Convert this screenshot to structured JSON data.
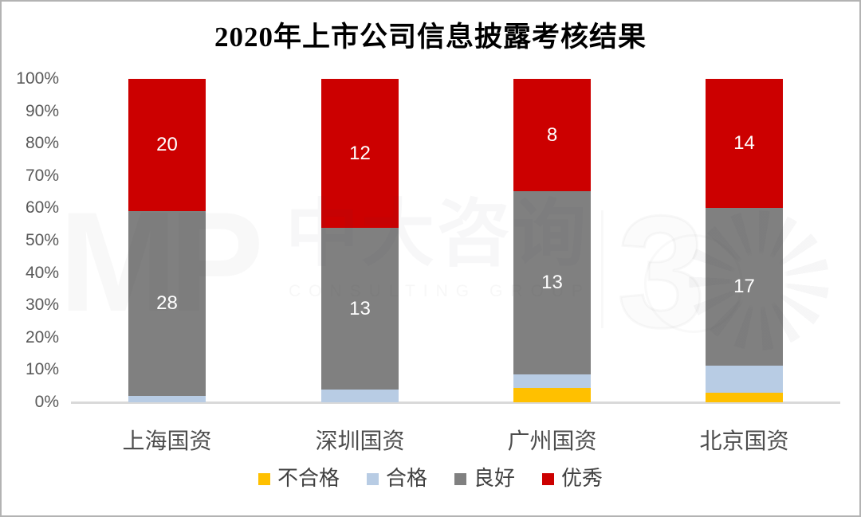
{
  "title": "2020年上市公司信息披露考核结果",
  "colors": {
    "fail": "#FFC000",
    "pass": "#B8CCE4",
    "good": "#808080",
    "excellent": "#CC0000",
    "axis_line": "#D9D9D9",
    "tick_text": "#595959",
    "segment_label_text": "#FFFFFF",
    "frame_border": "#B3B3B3"
  },
  "watermark": {
    "logo": "MP",
    "brand": "中大咨询",
    "brand_sub": "CONSULTING GROUP",
    "mark": "3"
  },
  "chart_data": {
    "type": "bar",
    "variant": "stacked-100-percent",
    "title": "2020年上市公司信息披露考核结果",
    "categories": [
      "上海国资",
      "深圳国资",
      "广州国资",
      "北京国资"
    ],
    "series": [
      {
        "name": "不合格",
        "color": "#FFC000",
        "values": [
          0,
          0,
          1,
          1
        ],
        "show_labels": false
      },
      {
        "name": "合格",
        "color": "#B8CCE4",
        "values": [
          1,
          1,
          1,
          3
        ],
        "show_labels": false
      },
      {
        "name": "良好",
        "color": "#808080",
        "values": [
          28,
          13,
          13,
          17
        ],
        "show_labels": true
      },
      {
        "name": "优秀",
        "color": "#CC0000",
        "values": [
          20,
          12,
          8,
          14
        ],
        "show_labels": true
      }
    ],
    "shown_segment_labels": {
      "良好": [
        28,
        13,
        13,
        17
      ],
      "优秀": [
        20,
        12,
        8,
        14
      ]
    },
    "y_ticks": [
      "100%",
      "90%",
      "80%",
      "70%",
      "60%",
      "50%",
      "40%",
      "30%",
      "20%",
      "10%",
      "0%"
    ],
    "ylim": [
      0,
      100
    ],
    "y_unit": "%",
    "grid": false,
    "legend_position": "bottom"
  }
}
